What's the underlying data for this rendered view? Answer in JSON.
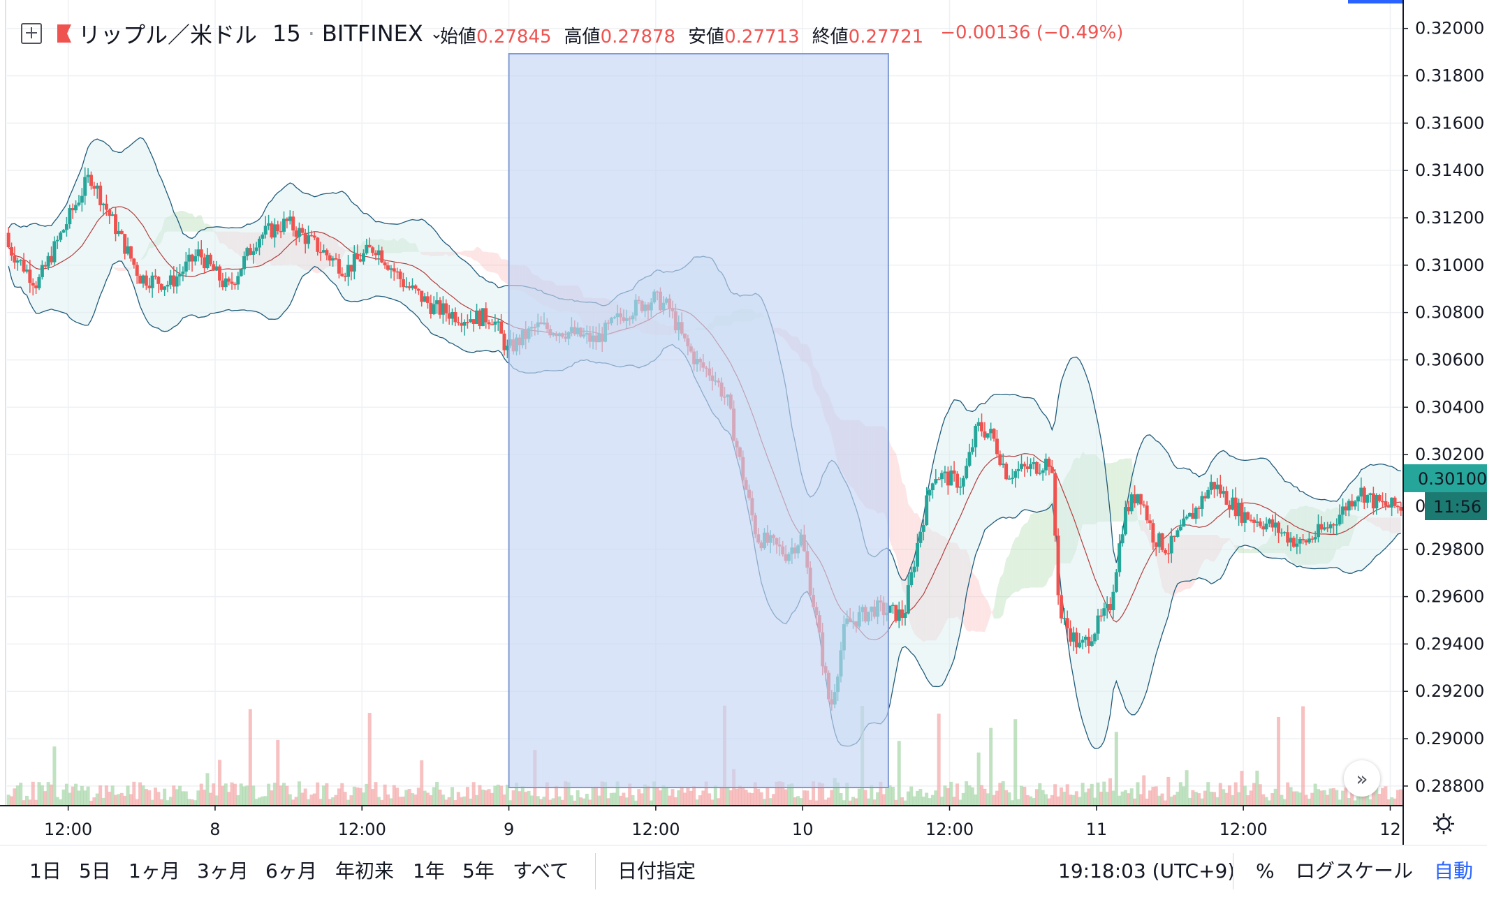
{
  "header": {
    "symbol": "リップル／米ドル",
    "interval": "15",
    "exchange": "BITFINEX",
    "open_label": "始値",
    "open": "0.27845",
    "high_label": "高値",
    "high": "0.27878",
    "low_label": "安値",
    "low": "0.27713",
    "close_label": "終値",
    "close": "0.27721",
    "change": "−0.00136 (−0.49%)"
  },
  "price_axis": {
    "ticks": [
      "0.32000",
      "0.31800",
      "0.31600",
      "0.31400",
      "0.31200",
      "0.31000",
      "0.30800",
      "0.30600",
      "0.30400",
      "0.30200",
      "0.29800",
      "0.29600",
      "0.29400",
      "0.29200",
      "0.29000",
      "0.28800"
    ],
    "current_price": "0.30100",
    "countdown": "11:56",
    "current_price_partial": "0."
  },
  "time_axis": {
    "ticks": [
      "12:00",
      "8",
      "12:00",
      "9",
      "12:00",
      "10",
      "12:00",
      "11",
      "12:00",
      "12"
    ]
  },
  "range_bar": {
    "items": [
      "1日",
      "5日",
      "1ヶ月",
      "3ヶ月",
      "6ヶ月",
      "年初来",
      "1年",
      "5年",
      "すべて"
    ],
    "date_range": "日付指定",
    "clock": "19:18:03 (UTC+9)",
    "percent": "%",
    "log_scale": "ログスケール",
    "auto": "自動"
  },
  "colors": {
    "up": "#26a69a",
    "down": "#ef5350",
    "selection": "#c5d5f5",
    "bollinger": "#1f5b7a",
    "price_badge": "#26a69a"
  },
  "chart_data": {
    "type": "candlestick",
    "symbol": "XRPUSD",
    "interval": "15",
    "x_range": [
      "7 07:00",
      "12 01:00"
    ],
    "ylim": [
      0.2872,
      0.3212
    ],
    "x_ticks": [
      "12:00",
      "8",
      "12:00",
      "9",
      "12:00",
      "10",
      "12:00",
      "11",
      "12:00",
      "12"
    ],
    "y_ticks": [
      0.32,
      0.318,
      0.316,
      0.314,
      0.312,
      0.31,
      0.308,
      0.306,
      0.304,
      0.302,
      0.298,
      0.296,
      0.294,
      0.292,
      0.29,
      0.288
    ],
    "price_path": [
      {
        "day": 7.0,
        "price": 0.3098
      },
      {
        "day": 7.05,
        "price": 0.3112
      },
      {
        "day": 7.12,
        "price": 0.3118
      },
      {
        "day": 7.18,
        "price": 0.3128
      },
      {
        "day": 7.25,
        "price": 0.3142
      },
      {
        "day": 7.3,
        "price": 0.3108
      },
      {
        "day": 7.4,
        "price": 0.3092
      },
      {
        "day": 7.5,
        "price": 0.3118
      },
      {
        "day": 7.58,
        "price": 0.3138
      },
      {
        "day": 7.65,
        "price": 0.312
      },
      {
        "day": 7.75,
        "price": 0.3095
      },
      {
        "day": 7.85,
        "price": 0.3092
      },
      {
        "day": 7.95,
        "price": 0.3105
      },
      {
        "day": 8.05,
        "price": 0.309
      },
      {
        "day": 8.15,
        "price": 0.3112
      },
      {
        "day": 8.25,
        "price": 0.3118
      },
      {
        "day": 8.35,
        "price": 0.3108
      },
      {
        "day": 8.45,
        "price": 0.3098
      },
      {
        "day": 8.55,
        "price": 0.3108
      },
      {
        "day": 8.65,
        "price": 0.3092
      },
      {
        "day": 8.75,
        "price": 0.3082
      },
      {
        "day": 8.85,
        "price": 0.3078
      },
      {
        "day": 8.95,
        "price": 0.3078
      },
      {
        "day": 9.0,
        "price": 0.3064
      },
      {
        "day": 9.1,
        "price": 0.3074
      },
      {
        "day": 9.2,
        "price": 0.3072
      },
      {
        "day": 9.3,
        "price": 0.3068
      },
      {
        "day": 9.4,
        "price": 0.308
      },
      {
        "day": 9.5,
        "price": 0.3086
      },
      {
        "day": 9.55,
        "price": 0.3082
      },
      {
        "day": 9.6,
        "price": 0.3068
      },
      {
        "day": 9.65,
        "price": 0.3058
      },
      {
        "day": 9.7,
        "price": 0.3054
      },
      {
        "day": 9.75,
        "price": 0.3042
      },
      {
        "day": 9.8,
        "price": 0.3012
      },
      {
        "day": 9.85,
        "price": 0.2985
      },
      {
        "day": 9.9,
        "price": 0.2982
      },
      {
        "day": 9.95,
        "price": 0.2978
      },
      {
        "day": 10.0,
        "price": 0.2985
      },
      {
        "day": 10.05,
        "price": 0.2952
      },
      {
        "day": 10.1,
        "price": 0.2912
      },
      {
        "day": 10.15,
        "price": 0.2948
      },
      {
        "day": 10.25,
        "price": 0.2955
      },
      {
        "day": 10.35,
        "price": 0.2952
      },
      {
        "day": 10.4,
        "price": 0.2985
      },
      {
        "day": 10.45,
        "price": 0.3012
      },
      {
        "day": 10.55,
        "price": 0.3008
      },
      {
        "day": 10.6,
        "price": 0.3032
      },
      {
        "day": 10.65,
        "price": 0.3028
      },
      {
        "day": 10.7,
        "price": 0.3012
      },
      {
        "day": 10.8,
        "price": 0.3015
      },
      {
        "day": 10.85,
        "price": 0.3018
      },
      {
        "day": 10.88,
        "price": 0.2952
      },
      {
        "day": 10.95,
        "price": 0.2938
      },
      {
        "day": 11.05,
        "price": 0.2955
      },
      {
        "day": 11.1,
        "price": 0.2995
      },
      {
        "day": 11.15,
        "price": 0.3005
      },
      {
        "day": 11.2,
        "price": 0.2985
      },
      {
        "day": 11.25,
        "price": 0.298
      },
      {
        "day": 11.35,
        "price": 0.2998
      },
      {
        "day": 11.4,
        "price": 0.3008
      },
      {
        "day": 11.5,
        "price": 0.2995
      },
      {
        "day": 11.6,
        "price": 0.299
      },
      {
        "day": 11.7,
        "price": 0.2982
      },
      {
        "day": 11.8,
        "price": 0.299
      },
      {
        "day": 11.9,
        "price": 0.3005
      },
      {
        "day": 11.95,
        "price": 0.3
      },
      {
        "day": 12.0,
        "price": 0.2998
      }
    ],
    "last_price": 0.301,
    "ohlc_legend": {
      "open": 0.27845,
      "high": 0.27878,
      "low": 0.27713,
      "close": 0.27721,
      "change": -0.00136,
      "change_pct": -0.49
    },
    "selection_range": {
      "from": "9 00:00",
      "to": "10 07:00"
    },
    "indicators": [
      "Bollinger Bands",
      "Ichimoku Cloud",
      "Volume"
    ]
  }
}
